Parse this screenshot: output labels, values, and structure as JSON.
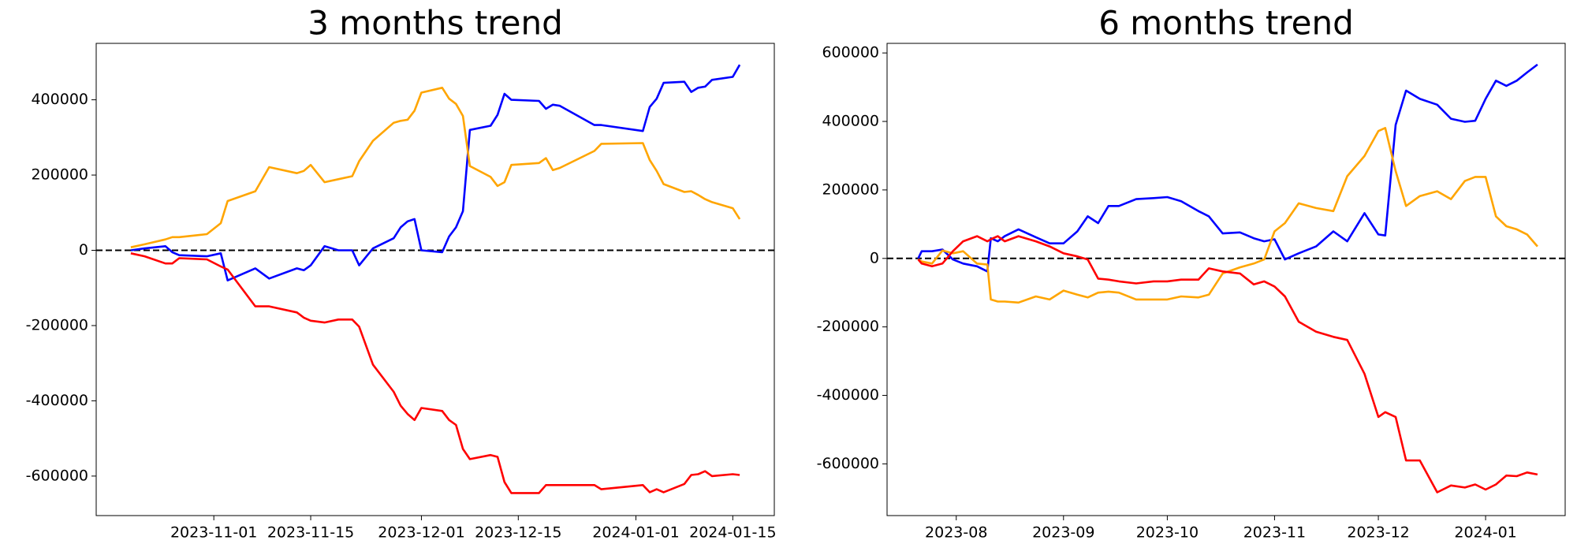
{
  "chart_data": [
    {
      "type": "line",
      "title": "3 months trend",
      "x": [
        "2023-10-20",
        "2023-10-22",
        "2023-10-25",
        "2023-10-26",
        "2023-10-27",
        "2023-10-31",
        "2023-11-02",
        "2023-11-03",
        "2023-11-07",
        "2023-11-09",
        "2023-11-13",
        "2023-11-14",
        "2023-11-15",
        "2023-11-17",
        "2023-11-19",
        "2023-11-21",
        "2023-11-22",
        "2023-11-24",
        "2023-11-27",
        "2023-11-28",
        "2023-11-29",
        "2023-11-30",
        "2023-12-01",
        "2023-12-04",
        "2023-12-05",
        "2023-12-06",
        "2023-12-07",
        "2023-12-08",
        "2023-12-11",
        "2023-12-12",
        "2023-12-13",
        "2023-12-14",
        "2023-12-18",
        "2023-12-19",
        "2023-12-20",
        "2023-12-21",
        "2023-12-26",
        "2023-12-27",
        "2024-01-02",
        "2024-01-03",
        "2024-01-04",
        "2024-01-05",
        "2024-01-08",
        "2024-01-09",
        "2024-01-10",
        "2024-01-11",
        "2024-01-12",
        "2024-01-15",
        "2024-01-16"
      ],
      "series": [
        {
          "color": "#0000ff",
          "values": [
            0,
            5000,
            11000,
            -5000,
            -13000,
            -16000,
            -8000,
            -80000,
            -48000,
            -75000,
            -48000,
            -53000,
            -40000,
            11000,
            0,
            0,
            -40000,
            5000,
            32000,
            61000,
            77000,
            83000,
            0,
            -5000,
            37000,
            61000,
            104000,
            320000,
            331000,
            360000,
            416000,
            400000,
            397000,
            376000,
            387000,
            384000,
            333000,
            333000,
            317000,
            381000,
            403000,
            445000,
            448000,
            421000,
            432000,
            435000,
            453000,
            461000,
            493000
          ]
        },
        {
          "color": "#ffa500",
          "values": [
            8000,
            16000,
            29000,
            35000,
            35000,
            43000,
            72000,
            131000,
            157000,
            221000,
            205000,
            211000,
            227000,
            181000,
            189000,
            197000,
            237000,
            291000,
            339000,
            344000,
            347000,
            371000,
            419000,
            432000,
            403000,
            389000,
            357000,
            224000,
            195000,
            171000,
            181000,
            227000,
            232000,
            245000,
            213000,
            219000,
            264000,
            283000,
            285000,
            240000,
            211000,
            176000,
            155000,
            157000,
            147000,
            136000,
            128000,
            112000,
            83000
          ]
        },
        {
          "color": "#ff0000",
          "values": [
            -8000,
            -16000,
            -35000,
            -35000,
            -21000,
            -24000,
            -43000,
            -51000,
            -149000,
            -149000,
            -165000,
            -179000,
            -187000,
            -192000,
            -184000,
            -184000,
            -203000,
            -304000,
            -376000,
            -413000,
            -435000,
            -451000,
            -419000,
            -427000,
            -451000,
            -464000,
            -528000,
            -555000,
            -544000,
            -549000,
            -616000,
            -645000,
            -645000,
            -624000,
            -624000,
            -624000,
            -624000,
            -635000,
            -624000,
            -643000,
            -635000,
            -643000,
            -621000,
            -597000,
            -595000,
            -587000,
            -600000,
            -595000,
            -597000
          ]
        }
      ],
      "xlim": [
        "2023-10-15",
        "2024-01-21"
      ],
      "ylim": [
        -705000,
        550000
      ],
      "xticks": [
        "2023-11-01",
        "2023-11-15",
        "2023-12-01",
        "2023-12-15",
        "2024-01-01",
        "2024-01-15"
      ],
      "yticks": [
        -600000,
        -400000,
        -200000,
        0,
        200000,
        400000
      ],
      "hline": 0
    },
    {
      "type": "line",
      "title": "6 months trend",
      "x": [
        "2023-07-21",
        "2023-07-22",
        "2023-07-25",
        "2023-07-28",
        "2023-07-31",
        "2023-08-03",
        "2023-08-07",
        "2023-08-10",
        "2023-08-11",
        "2023-08-13",
        "2023-08-15",
        "2023-08-19",
        "2023-08-24",
        "2023-08-28",
        "2023-09-01",
        "2023-09-05",
        "2023-09-08",
        "2023-09-11",
        "2023-09-14",
        "2023-09-17",
        "2023-09-22",
        "2023-09-27",
        "2023-10-01",
        "2023-10-05",
        "2023-10-10",
        "2023-10-13",
        "2023-10-17",
        "2023-10-22",
        "2023-10-26",
        "2023-10-29",
        "2023-11-01",
        "2023-11-04",
        "2023-11-08",
        "2023-11-13",
        "2023-11-18",
        "2023-11-22",
        "2023-11-27",
        "2023-12-01",
        "2023-12-03",
        "2023-12-06",
        "2023-12-09",
        "2023-12-13",
        "2023-12-18",
        "2023-12-22",
        "2023-12-26",
        "2023-12-29",
        "2024-01-01",
        "2024-01-04",
        "2024-01-07",
        "2024-01-10",
        "2024-01-13",
        "2024-01-16"
      ],
      "series": [
        {
          "color": "#0000ff",
          "values": [
            0,
            21000,
            21000,
            26000,
            -3000,
            -15000,
            -23000,
            -38000,
            59000,
            50000,
            65000,
            85000,
            62000,
            44000,
            44000,
            79000,
            123000,
            103000,
            153000,
            153000,
            173000,
            176000,
            179000,
            167000,
            138000,
            123000,
            73000,
            76000,
            59000,
            50000,
            56000,
            -3000,
            15000,
            35000,
            79000,
            50000,
            132000,
            70000,
            67000,
            390000,
            490000,
            466000,
            449000,
            408000,
            399000,
            402000,
            466000,
            519000,
            504000,
            519000,
            543000,
            566000
          ]
        },
        {
          "color": "#ffa500",
          "values": [
            -3000,
            -9000,
            -15000,
            23000,
            15000,
            21000,
            -15000,
            -18000,
            -120000,
            -126000,
            -126000,
            -129000,
            -111000,
            -120000,
            -94000,
            -106000,
            -114000,
            -100000,
            -97000,
            -100000,
            -120000,
            -120000,
            -120000,
            -111000,
            -114000,
            -106000,
            -44000,
            -26000,
            -15000,
            -3000,
            79000,
            103000,
            161000,
            147000,
            138000,
            240000,
            299000,
            372000,
            381000,
            255000,
            153000,
            182000,
            196000,
            173000,
            226000,
            238000,
            238000,
            123000,
            94000,
            85000,
            70000,
            35000
          ]
        },
        {
          "color": "#ff0000",
          "values": [
            -3000,
            -15000,
            -23000,
            -15000,
            21000,
            50000,
            65000,
            50000,
            56000,
            65000,
            50000,
            65000,
            50000,
            35000,
            15000,
            6000,
            -3000,
            -59000,
            -62000,
            -67000,
            -73000,
            -67000,
            -67000,
            -62000,
            -62000,
            -29000,
            -38000,
            -44000,
            -76000,
            -67000,
            -82000,
            -111000,
            -185000,
            -214000,
            -229000,
            -238000,
            -337000,
            -463000,
            -449000,
            -463000,
            -590000,
            -590000,
            -683000,
            -663000,
            -669000,
            -660000,
            -675000,
            -660000,
            -634000,
            -636000,
            -625000,
            -631000
          ]
        }
      ],
      "xlim": [
        "2023-07-12",
        "2024-01-24"
      ],
      "ylim": [
        -751000,
        628000
      ],
      "xticks": [
        {
          "value": "2023-08-01",
          "label": "2023-08"
        },
        {
          "value": "2023-09-01",
          "label": "2023-09"
        },
        {
          "value": "2023-10-01",
          "label": "2023-10"
        },
        {
          "value": "2023-11-01",
          "label": "2023-11"
        },
        {
          "value": "2023-12-01",
          "label": "2023-12"
        },
        {
          "value": "2024-01-01",
          "label": "2024-01"
        }
      ],
      "yticks": [
        -600000,
        -400000,
        -200000,
        0,
        200000,
        400000,
        600000
      ],
      "hline": 0
    }
  ]
}
